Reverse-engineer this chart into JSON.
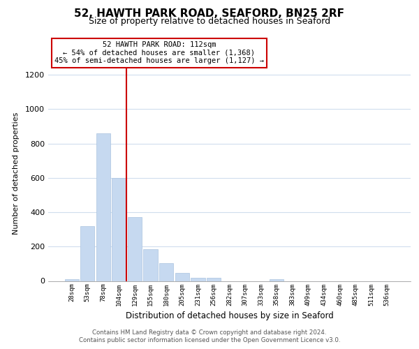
{
  "title": "52, HAWTH PARK ROAD, SEAFORD, BN25 2RF",
  "subtitle": "Size of property relative to detached houses in Seaford",
  "xlabel": "Distribution of detached houses by size in Seaford",
  "ylabel": "Number of detached properties",
  "bar_labels": [
    "28sqm",
    "53sqm",
    "78sqm",
    "104sqm",
    "129sqm",
    "155sqm",
    "180sqm",
    "205sqm",
    "231sqm",
    "256sqm",
    "282sqm",
    "307sqm",
    "333sqm",
    "358sqm",
    "383sqm",
    "409sqm",
    "434sqm",
    "460sqm",
    "485sqm",
    "511sqm",
    "536sqm"
  ],
  "bar_values": [
    10,
    320,
    860,
    600,
    370,
    185,
    105,
    45,
    20,
    20,
    0,
    0,
    0,
    10,
    0,
    0,
    0,
    0,
    0,
    0,
    0
  ],
  "bar_color": "#c6d9f0",
  "bar_edge_color": "#aac4e0",
  "vline_color": "#cc0000",
  "annotation_text": "52 HAWTH PARK ROAD: 112sqm\n← 54% of detached houses are smaller (1,368)\n45% of semi-detached houses are larger (1,127) →",
  "annotation_box_color": "#ffffff",
  "annotation_box_edge": "#cc0000",
  "ylim": [
    0,
    1250
  ],
  "yticks": [
    0,
    200,
    400,
    600,
    800,
    1000,
    1200
  ],
  "footer_line1": "Contains HM Land Registry data © Crown copyright and database right 2024.",
  "footer_line2": "Contains public sector information licensed under the Open Government Licence v3.0.",
  "background_color": "#ffffff",
  "grid_color": "#d0dded"
}
